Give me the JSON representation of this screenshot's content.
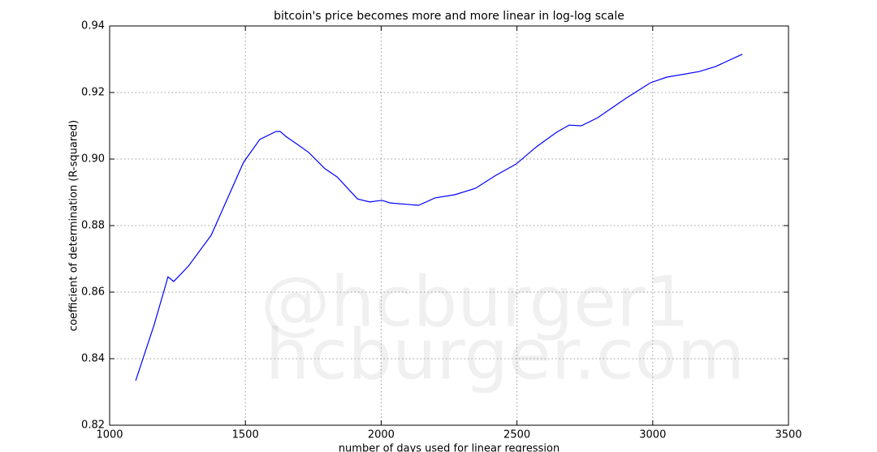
{
  "chart_data": {
    "type": "line",
    "title": "bitcoin's price becomes more and more linear in log-log scale",
    "x_label": "number of days used for linear regression",
    "y_label": "coefficient of determination (R-squared)",
    "watermark": [
      "@hcburger1",
      "hcburger.com"
    ],
    "x": [
      1096,
      1164,
      1215,
      1236,
      1290,
      1374,
      1493,
      1553,
      1613,
      1628,
      1649,
      1688,
      1733,
      1793,
      1838,
      1913,
      1958,
      2003,
      2033,
      2138,
      2198,
      2272,
      2347,
      2422,
      2497,
      2572,
      2647,
      2692,
      2737,
      2797,
      2902,
      2991,
      3051,
      3171,
      3231,
      3330
    ],
    "series": [
      {
        "color": "#0000ff",
        "values": [
          0.8334,
          0.8502,
          0.8646,
          0.8632,
          0.8678,
          0.8771,
          0.899,
          0.9059,
          0.9083,
          0.9083,
          0.9068,
          0.9046,
          0.902,
          0.8971,
          0.8946,
          0.888,
          0.8871,
          0.8876,
          0.8868,
          0.8861,
          0.8883,
          0.8893,
          0.8912,
          0.8951,
          0.8985,
          0.9037,
          0.9081,
          0.9102,
          0.91,
          0.9124,
          0.9183,
          0.9229,
          0.9246,
          0.9263,
          0.9278,
          0.9315
        ]
      }
    ],
    "xlim": [
      1000,
      3500
    ],
    "xticks": [
      1000,
      1500,
      2000,
      2500,
      3000,
      3500
    ],
    "ylim": [
      0.82,
      0.94
    ],
    "yticks": [
      0.82,
      0.84,
      0.86,
      0.88,
      {
        "value": 0.9,
        "label": "0.90"
      },
      0.92,
      0.94
    ],
    "grid": true
  }
}
